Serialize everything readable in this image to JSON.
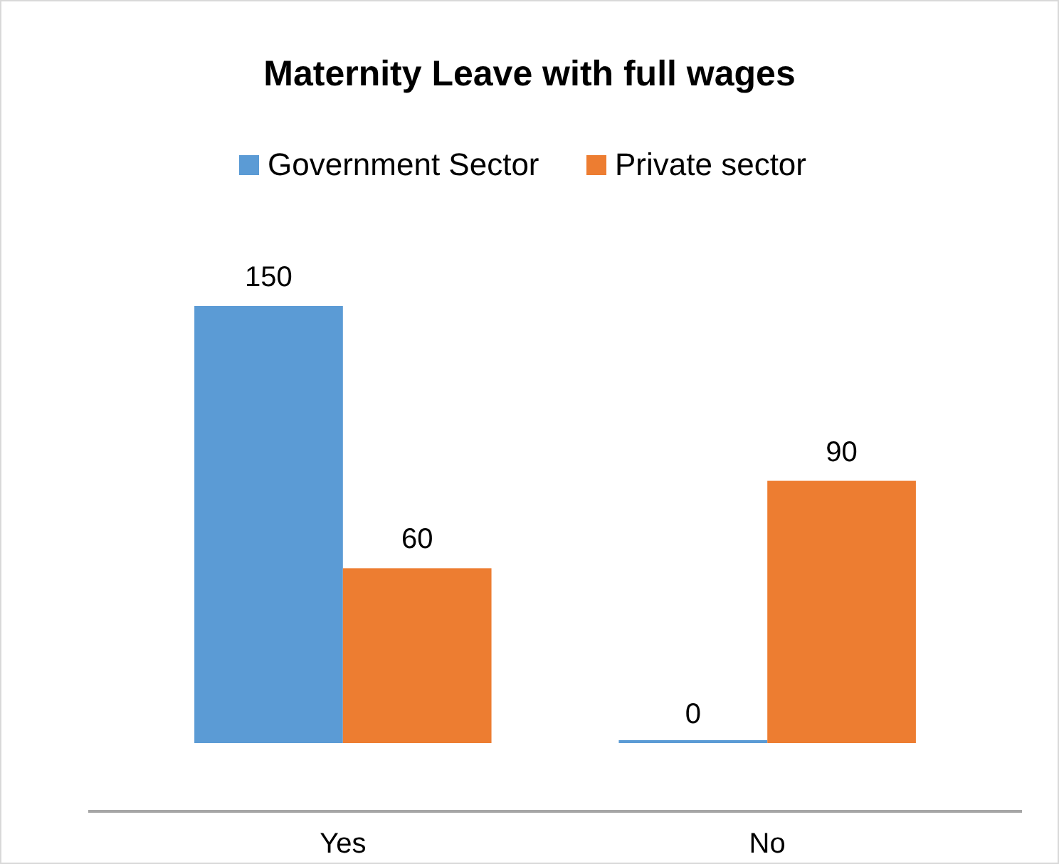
{
  "chart_data": {
    "type": "bar",
    "title": "Maternity Leave with full wages",
    "categories": [
      "Yes",
      "No"
    ],
    "series": [
      {
        "name": "Government Sector",
        "color": "#5b9bd5",
        "values": [
          150,
          0
        ]
      },
      {
        "name": "Private sector",
        "color": "#ed7d31",
        "values": [
          60,
          90
        ]
      }
    ],
    "data_labels": true,
    "legend": "top",
    "grid": false
  }
}
